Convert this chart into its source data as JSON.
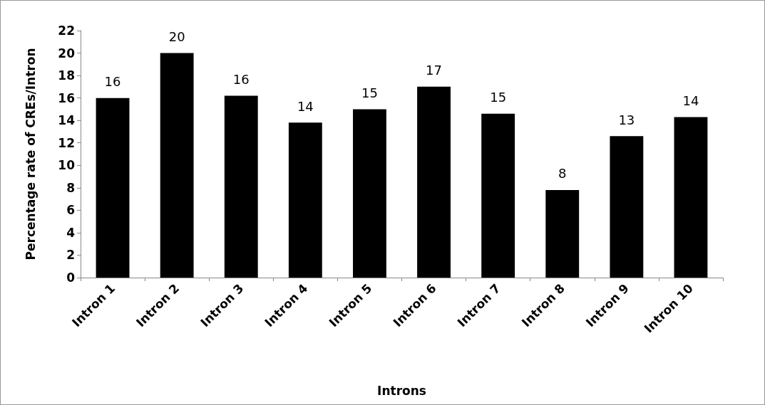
{
  "chart_data": {
    "type": "bar",
    "xlabel": "Introns",
    "ylabel": "Percentage rate of CREs/Intron",
    "categories": [
      "Intron 1",
      "Intron 2",
      "Intron 3",
      "Intron 4",
      "Intron 5",
      "Intron 6",
      "Intron 7",
      "Intron 8",
      "Intron 9",
      "Intron 10"
    ],
    "values": [
      16.0,
      20.0,
      16.2,
      13.8,
      15.0,
      17.0,
      14.6,
      7.8,
      12.6,
      14.3
    ],
    "value_labels": [
      "16",
      "20",
      "16",
      "14",
      "15",
      "17",
      "15",
      "8",
      "13",
      "14"
    ],
    "color": "#000000",
    "ylim": [
      0,
      22
    ],
    "yticks": [
      0,
      2,
      4,
      6,
      8,
      10,
      12,
      14,
      16,
      18,
      20,
      22
    ],
    "grid": false
  }
}
